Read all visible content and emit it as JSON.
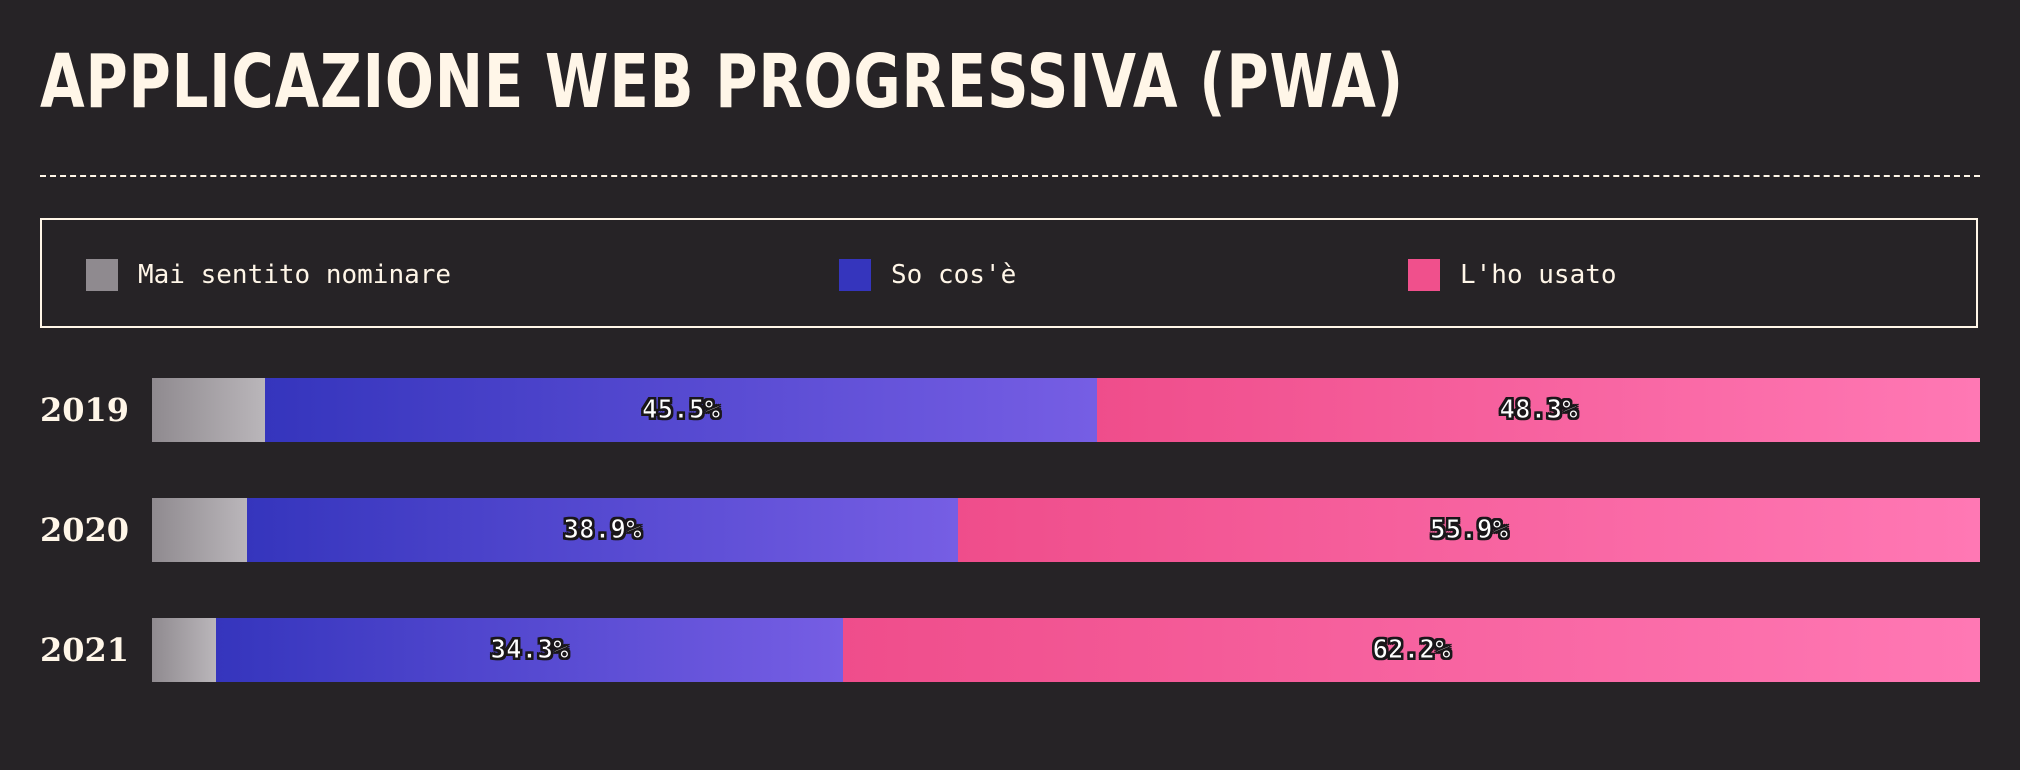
{
  "title": "APPLICAZIONE WEB PROGRESSIVA (PWA)",
  "legend": [
    {
      "label": "Mai sentito nominare",
      "color": "#8f8a8f"
    },
    {
      "label": "So cos'è",
      "color": "#3535bd"
    },
    {
      "label": "L'ho usato",
      "color": "#f0508c"
    }
  ],
  "gradients": {
    "Mai sentito nominare": [
      "#8f8a8f",
      "#bab6ba"
    ],
    "So cos'è": [
      "#3535bd",
      "#765ee4"
    ],
    "L'ho usato": [
      "#ef4d8b",
      "#ff78b4"
    ]
  },
  "chart_data": {
    "type": "bar",
    "orientation": "horizontal",
    "stacked": true,
    "normalized": true,
    "title": "APPLICAZIONE WEB PROGRESSIVA (PWA)",
    "categories": [
      "2019",
      "2020",
      "2021"
    ],
    "series": [
      {
        "name": "Mai sentito nominare",
        "values": [
          6.2,
          5.2,
          3.5
        ],
        "labels": [
          "",
          "",
          ""
        ]
      },
      {
        "name": "So cos'è",
        "values": [
          45.5,
          38.9,
          34.3
        ],
        "labels": [
          "45.5%",
          "38.9%",
          "34.3%"
        ]
      },
      {
        "name": "L'ho usato",
        "values": [
          48.3,
          55.9,
          62.2
        ],
        "labels": [
          "48.3%",
          "55.9%",
          "62.2%"
        ]
      }
    ],
    "xlim": [
      0,
      100
    ],
    "legend_position": "top"
  }
}
